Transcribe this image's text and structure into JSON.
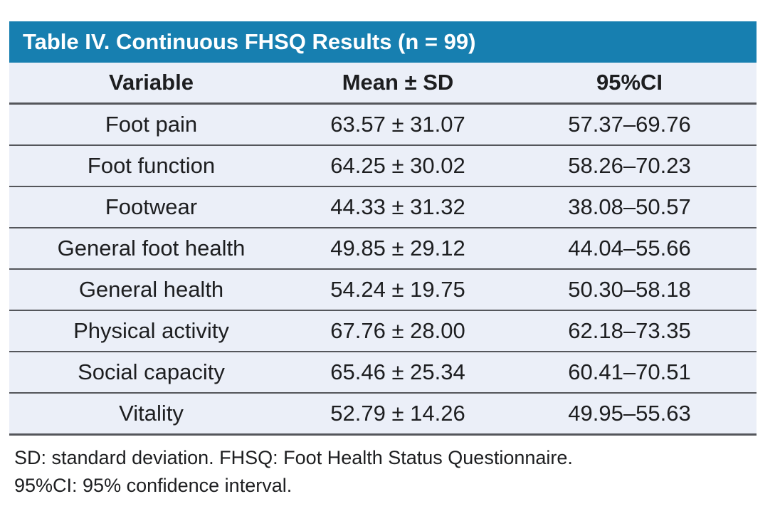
{
  "table": {
    "title": "Table IV. Continuous FHSQ Results (n = 99)",
    "columns": [
      "Variable",
      "Mean ± SD",
      "95%CI"
    ],
    "rows": [
      [
        "Foot pain",
        "63.57 ± 31.07",
        "57.37–69.76"
      ],
      [
        "Foot function",
        "64.25 ± 30.02",
        "58.26–70.23"
      ],
      [
        "Footwear",
        "44.33 ± 31.32",
        "38.08–50.57"
      ],
      [
        "General foot health",
        "49.85 ± 29.12",
        "44.04–55.66"
      ],
      [
        "General health",
        "54.24 ± 19.75",
        "50.30–58.18"
      ],
      [
        "Physical activity",
        "67.76 ± 28.00",
        "62.18–73.35"
      ],
      [
        "Social capacity",
        "65.46 ± 25.34",
        "60.41–70.51"
      ],
      [
        "Vitality",
        "52.79 ± 14.26",
        "49.95–55.63"
      ]
    ],
    "footnotes": [
      "SD: standard deviation. FHSQ: Foot Health Status Questionnaire.",
      "95%CI: 95% confidence interval."
    ]
  },
  "colors": {
    "title_bar_bg": "#177fb0",
    "title_text": "#ffffff",
    "row_bg": "#ebeff8",
    "separator": "#54565b",
    "body_text": "#1d1e20",
    "page_bg": "#ffffff"
  }
}
